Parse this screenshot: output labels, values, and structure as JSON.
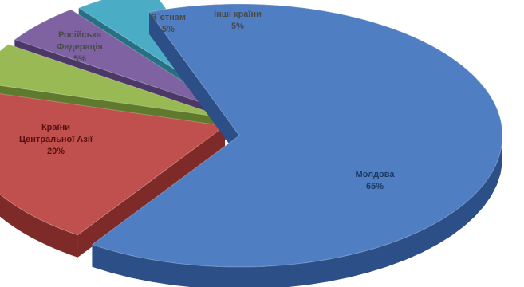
{
  "chart_data": {
    "type": "pie",
    "style": "exploded 3d pie",
    "slices": [
      {
        "label_lines": [
          "Молдова"
        ],
        "value": 65,
        "value_label": "65%",
        "color": "#4f7fc2",
        "side_color": "#2b4f86"
      },
      {
        "label_lines": [
          "Країни",
          "Центральної Азії"
        ],
        "value": 20,
        "value_label": "20%",
        "color": "#c0504d",
        "side_color": "#7e2a28"
      },
      {
        "label_lines": [
          "Російська",
          "Федерація"
        ],
        "value": 5,
        "value_label": "5%",
        "color": "#98b954",
        "side_color": "#5f7a2c"
      },
      {
        "label_lines": [
          "В`єтнам"
        ],
        "value": 5,
        "value_label": "5%",
        "color": "#7e62a1",
        "side_color": "#4c3866"
      },
      {
        "label_lines": [
          "Інші країни"
        ],
        "value": 5,
        "value_label": "5%",
        "color": "#4bacc6",
        "side_color": "#276f82"
      }
    ]
  }
}
